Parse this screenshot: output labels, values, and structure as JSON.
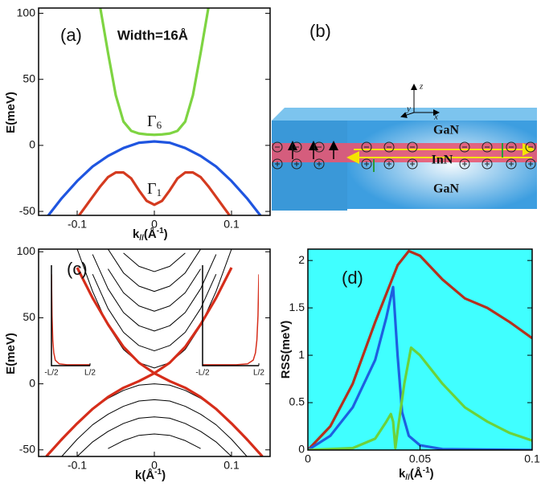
{
  "chart_data": [
    {
      "type": "line",
      "label": "(a)",
      "ylabel": "E(meV)",
      "xlabel": [
        "k",
        "//",
        "(Å",
        "-1",
        ")"
      ],
      "annotations": [
        {
          "text": "Width=16Å"
        },
        {
          "text": "Γ",
          "sub": "6"
        },
        {
          "text": "Γ",
          "sub": "1"
        }
      ],
      "xlim": [
        -0.15,
        0.15
      ],
      "ylim": [
        -53,
        104
      ],
      "xticks": [
        -0.1,
        0,
        0.1
      ],
      "yticks": [
        -50,
        0,
        50,
        100
      ],
      "series": [
        {
          "color": "#7ed442",
          "x": [
            -0.07,
            -0.06,
            -0.05,
            -0.04,
            -0.03,
            -0.02,
            -0.01,
            0,
            0.01,
            0.02,
            0.03,
            0.04,
            0.05,
            0.06,
            0.07
          ],
          "values": [
            104,
            70,
            38,
            18,
            11,
            9,
            8.3,
            8,
            8.3,
            9,
            11,
            18,
            38,
            70,
            104
          ]
        },
        {
          "color": "#1f55e0",
          "x": [
            -0.14,
            -0.12,
            -0.1,
            -0.08,
            -0.06,
            -0.04,
            -0.02,
            0,
            0.02,
            0.04,
            0.06,
            0.08,
            0.1,
            0.12,
            0.14
          ],
          "values": [
            -55,
            -40,
            -27,
            -16,
            -8,
            -2,
            2,
            3,
            2,
            -2,
            -8,
            -16,
            -27,
            -40,
            -55
          ]
        },
        {
          "color": "#d43a1f",
          "x": [
            -0.1,
            -0.09,
            -0.08,
            -0.07,
            -0.06,
            -0.05,
            -0.04,
            -0.03,
            -0.02,
            -0.01,
            0,
            0.01,
            0.02,
            0.03,
            0.04,
            0.05,
            0.06,
            0.07,
            0.08,
            0.09,
            0.1
          ],
          "values": [
            -55,
            -47,
            -39,
            -31,
            -24,
            -20.5,
            -20.5,
            -25,
            -34,
            -42,
            -45,
            -42,
            -34,
            -25,
            -20.5,
            -20.5,
            -24,
            -31,
            -39,
            -47,
            -55
          ]
        }
      ]
    },
    {
      "type": "line",
      "label": "(c)",
      "ylabel": "E(meV)",
      "xlabel": [
        "k(Å",
        "-1",
        ")"
      ],
      "xlim": [
        -0.15,
        0.15
      ],
      "ylim": [
        -55,
        102
      ],
      "xticks": [
        -0.1,
        0,
        0.1
      ],
      "yticks": [
        -50,
        0,
        50,
        100
      ],
      "series": [
        {
          "color": "#000000",
          "x": [
            -0.14,
            -0.12,
            -0.1,
            -0.08,
            -0.06,
            -0.04,
            -0.02,
            0,
            0.02,
            0.04,
            0.06,
            0.08,
            0.1,
            0.12,
            0.14
          ],
          "values": [
            null,
            null,
            102,
            70,
            44,
            26,
            16,
            12,
            16,
            26,
            44,
            70,
            102,
            null,
            null
          ]
        },
        {
          "color": "#000000",
          "x": [
            -0.14,
            -0.12,
            -0.1,
            -0.08,
            -0.06,
            -0.04,
            -0.02,
            0,
            0.02,
            0.04,
            0.06,
            0.08,
            0.1,
            0.12,
            0.14
          ],
          "values": [
            null,
            null,
            null,
            83,
            57,
            39,
            29,
            25,
            29,
            39,
            57,
            83,
            null,
            null,
            null
          ]
        },
        {
          "color": "#000000",
          "x": [
            -0.14,
            -0.12,
            -0.1,
            -0.08,
            -0.06,
            -0.04,
            -0.02,
            0,
            0.02,
            0.04,
            0.06,
            0.08,
            0.1,
            0.12,
            0.14
          ],
          "values": [
            null,
            null,
            null,
            98,
            72,
            54,
            44,
            40,
            44,
            54,
            72,
            98,
            null,
            null,
            null
          ]
        },
        {
          "color": "#000000",
          "x": [
            -0.14,
            -0.12,
            -0.1,
            -0.08,
            -0.06,
            -0.04,
            -0.02,
            0,
            0.02,
            0.04,
            0.06,
            0.08,
            0.1,
            0.12,
            0.14
          ],
          "values": [
            null,
            null,
            null,
            null,
            87,
            69,
            59,
            55,
            59,
            69,
            87,
            null,
            null,
            null,
            null
          ]
        },
        {
          "color": "#000000",
          "x": [
            -0.14,
            -0.12,
            -0.1,
            -0.08,
            -0.06,
            -0.04,
            -0.02,
            0,
            0.02,
            0.04,
            0.06,
            0.08,
            0.1,
            0.12,
            0.14
          ],
          "values": [
            null,
            null,
            null,
            null,
            102,
            84,
            74,
            70,
            74,
            84,
            102,
            null,
            null,
            null,
            null
          ]
        },
        {
          "color": "#000000",
          "x": [
            -0.14,
            -0.12,
            -0.1,
            -0.08,
            -0.06,
            -0.04,
            -0.02,
            0,
            0.02,
            0.04,
            0.06,
            0.08,
            0.1,
            0.12,
            0.14
          ],
          "values": [
            null,
            null,
            null,
            null,
            null,
            99,
            89,
            85,
            89,
            99,
            null,
            null,
            null,
            null,
            null
          ]
        },
        {
          "color": "#000000",
          "x": [
            -0.14,
            -0.12,
            -0.1,
            -0.08,
            -0.06,
            -0.04,
            -0.02,
            0,
            0.02,
            0.04,
            0.06,
            0.08,
            0.1,
            0.12,
            0.14
          ],
          "values": [
            null,
            -43,
            -30,
            -19,
            -11,
            -5,
            -1,
            0,
            -1,
            -5,
            -11,
            -19,
            -30,
            -43,
            null
          ]
        },
        {
          "color": "#000000",
          "x": [
            -0.14,
            -0.12,
            -0.1,
            -0.08,
            -0.06,
            -0.04,
            -0.02,
            0,
            0.02,
            0.04,
            0.06,
            0.08,
            0.1,
            0.12,
            0.14
          ],
          "values": [
            null,
            -55,
            -42,
            -31,
            -23,
            -17,
            -13,
            -12,
            -13,
            -17,
            -23,
            -31,
            -42,
            -55,
            null
          ]
        },
        {
          "color": "#000000",
          "x": [
            -0.14,
            -0.12,
            -0.1,
            -0.08,
            -0.06,
            -0.04,
            -0.02,
            0,
            0.02,
            0.04,
            0.06,
            0.08,
            0.1,
            0.12,
            0.14
          ],
          "values": [
            null,
            null,
            -55,
            -44,
            -36,
            -30,
            -26,
            -25,
            -26,
            -30,
            -36,
            -44,
            -55,
            null,
            null
          ]
        },
        {
          "color": "#000000",
          "x": [
            -0.14,
            -0.12,
            -0.1,
            -0.08,
            -0.06,
            -0.04,
            -0.02,
            0,
            0.02,
            0.04,
            0.06,
            0.08,
            0.1,
            0.12,
            0.14
          ],
          "values": [
            null,
            null,
            null,
            null,
            -49,
            -43,
            -39,
            -38,
            -39,
            -43,
            -49,
            null,
            null,
            null,
            null
          ]
        },
        {
          "color": "#d62d1a",
          "x": [
            -0.14,
            -0.12,
            -0.1,
            -0.08,
            -0.06,
            -0.04,
            -0.02,
            0,
            0.02,
            0.04,
            0.06,
            0.08,
            0.1,
            0.12,
            0.14
          ],
          "values": [
            null,
            null,
            88,
            65,
            45,
            28,
            16,
            8,
            2,
            -3,
            -10,
            -19,
            -30,
            -42,
            -55
          ]
        },
        {
          "color": "#d62d1a",
          "x": [
            -0.14,
            -0.12,
            -0.1,
            -0.08,
            -0.06,
            -0.04,
            -0.02,
            0,
            0.02,
            0.04,
            0.06,
            0.08,
            0.1,
            0.12,
            0.14
          ],
          "values": [
            -55,
            -42,
            -30,
            -19,
            -10,
            -3,
            2,
            8,
            16,
            28,
            45,
            65,
            88,
            null,
            null
          ]
        }
      ]
    },
    {
      "type": "line",
      "xlim": [
        -1,
        1
      ],
      "ylim": [
        0,
        1.1
      ],
      "xticks": [
        {
          "value": -1,
          "label": "-L/2"
        },
        {
          "value": 1,
          "label": "L/2"
        }
      ],
      "series": [
        {
          "color": "#d62d1a",
          "x": [
            -1,
            -0.97,
            -0.93,
            -0.88,
            -0.8,
            -0.6,
            -0.2,
            0.2,
            0.6,
            1
          ],
          "values": [
            1,
            0.55,
            0.28,
            0.14,
            0.06,
            0.02,
            0.01,
            0.01,
            0.01,
            0.01
          ]
        }
      ]
    },
    {
      "type": "line",
      "xlim": [
        -1,
        1
      ],
      "ylim": [
        0,
        1.1
      ],
      "xticks": [
        {
          "value": -1,
          "label": "-L/2"
        },
        {
          "value": 1,
          "label": "L/2"
        }
      ],
      "series": [
        {
          "color": "#d62d1a",
          "x": [
            -1,
            -0.6,
            -0.2,
            0.2,
            0.6,
            0.8,
            0.88,
            0.93,
            0.97,
            1
          ],
          "values": [
            0.01,
            0.01,
            0.01,
            0.01,
            0.02,
            0.06,
            0.14,
            0.28,
            0.55,
            1
          ]
        }
      ]
    },
    {
      "type": "line",
      "label": "(d)",
      "ylabel": "RSS(meV)",
      "xlabel": [
        "k",
        "//",
        "(Å",
        "-1",
        ")"
      ],
      "background": "#40ffff",
      "xlim": [
        0,
        0.1
      ],
      "ylim": [
        0,
        2.12
      ],
      "xticks": [
        0,
        0.05,
        0.1
      ],
      "yticks": [
        0,
        0.5,
        1,
        1.5,
        2
      ],
      "series": [
        {
          "color": "#b5301e",
          "x": [
            0,
            0.01,
            0.02,
            0.03,
            0.04,
            0.045,
            0.05,
            0.06,
            0.07,
            0.08,
            0.09,
            0.1
          ],
          "values": [
            0,
            0.25,
            0.7,
            1.35,
            1.95,
            2.1,
            2.05,
            1.8,
            1.6,
            1.5,
            1.35,
            1.18
          ]
        },
        {
          "color": "#1e5fe0",
          "x": [
            0,
            0.01,
            0.02,
            0.03,
            0.035,
            0.038,
            0.04,
            0.042,
            0.045,
            0.05,
            0.06,
            0.1
          ],
          "values": [
            0,
            0.15,
            0.45,
            0.95,
            1.4,
            1.72,
            1.0,
            0.4,
            0.15,
            0.05,
            0.01,
            0
          ]
        },
        {
          "color": "#6cd23a",
          "x": [
            0,
            0.02,
            0.03,
            0.035,
            0.037,
            0.038,
            0.039,
            0.04,
            0.043,
            0.046,
            0.05,
            0.06,
            0.07,
            0.08,
            0.09,
            0.1
          ],
          "values": [
            0,
            0.02,
            0.12,
            0.3,
            0.38,
            0.3,
            0.02,
            0.2,
            0.7,
            1.08,
            1.0,
            0.7,
            0.45,
            0.3,
            0.18,
            0.1
          ]
        }
      ]
    }
  ],
  "diagram": {
    "label": "(b)",
    "layers": [
      "GaN",
      "InN",
      "GaN"
    ],
    "axis_labels": [
      "z",
      "y",
      "x"
    ]
  }
}
